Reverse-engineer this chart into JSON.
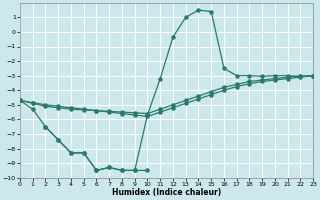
{
  "xlabel": "Humidex (Indice chaleur)",
  "bg_color": "#cce8ec",
  "grid_color": "#ffffff",
  "line_color": "#2a7a6a",
  "xlim": [
    0,
    23
  ],
  "ylim": [
    -10,
    2
  ],
  "xticks": [
    0,
    1,
    2,
    3,
    4,
    5,
    6,
    7,
    8,
    9,
    10,
    11,
    12,
    13,
    14,
    15,
    16,
    17,
    18,
    19,
    20,
    21,
    22,
    23
  ],
  "yticks": [
    1,
    0,
    -1,
    -2,
    -3,
    -4,
    -5,
    -6,
    -7,
    -8,
    -9,
    -10
  ],
  "curve_main_x": [
    0,
    1,
    2,
    3,
    4,
    5,
    6,
    7,
    8,
    9,
    10,
    11,
    12,
    13,
    14,
    15,
    16,
    17,
    18,
    19,
    20,
    21,
    22,
    23
  ],
  "curve_main_y": [
    -4.7,
    -5.3,
    -6.5,
    -7.4,
    -8.3,
    -8.3,
    -9.5,
    -9.3,
    -9.5,
    -9.5,
    -5.7,
    -3.2,
    -0.35,
    1.0,
    1.5,
    1.4,
    -2.5,
    -3.0,
    -3.0,
    -3.05,
    -3.0,
    -3.0,
    -3.05,
    -3.0
  ],
  "curve_line1_x": [
    0,
    1,
    2,
    3,
    4,
    5,
    6,
    7,
    8,
    9,
    10,
    11,
    12,
    13,
    14,
    15,
    16,
    17,
    18,
    19,
    20,
    21,
    22,
    23
  ],
  "curve_line1_y": [
    -4.7,
    -4.9,
    -5.1,
    -5.2,
    -5.3,
    -5.35,
    -5.4,
    -5.45,
    -5.5,
    -5.55,
    -5.6,
    -5.3,
    -5.0,
    -4.7,
    -4.4,
    -4.1,
    -3.8,
    -3.6,
    -3.4,
    -3.3,
    -3.2,
    -3.1,
    -3.05,
    -3.0
  ],
  "curve_line2_x": [
    0,
    1,
    2,
    3,
    4,
    5,
    6,
    7,
    8,
    9,
    10,
    11,
    12,
    13,
    14,
    15,
    16,
    17,
    18,
    19,
    20,
    21,
    22,
    23
  ],
  "curve_line2_y": [
    -4.7,
    -4.85,
    -5.0,
    -5.1,
    -5.2,
    -5.3,
    -5.4,
    -5.5,
    -5.6,
    -5.7,
    -5.8,
    -5.5,
    -5.2,
    -4.9,
    -4.6,
    -4.3,
    -4.0,
    -3.75,
    -3.55,
    -3.4,
    -3.3,
    -3.2,
    -3.1,
    -3.0
  ],
  "curve_low_x": [
    2,
    3,
    4,
    5,
    6,
    7,
    8,
    9,
    10
  ],
  "curve_low_y": [
    -6.5,
    -7.4,
    -8.3,
    -8.3,
    -9.5,
    -9.3,
    -9.5,
    -9.5,
    -9.5
  ]
}
